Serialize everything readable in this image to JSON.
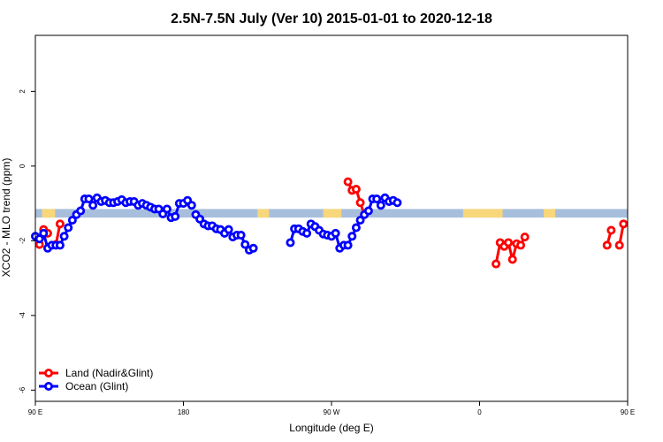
{
  "chart_data": {
    "type": "line",
    "title": "2.5N-7.5N July (Ver 10)   2015-01-01 to 2020-12-18",
    "xlabel": "Longitude (deg E)",
    "ylabel": "XCO2 - MLO trend (ppm)",
    "xlim": [
      90,
      450
    ],
    "ylim": [
      -6.3,
      3.5
    ],
    "x_ticks": [
      {
        "value": 90,
        "label": "90 E"
      },
      {
        "value": 180,
        "label": "180"
      },
      {
        "value": 270,
        "label": "90 W"
      },
      {
        "value": 360,
        "label": "0"
      },
      {
        "value": 450,
        "label": "90 E"
      },
      {
        "value": 540,
        "label": "180"
      }
    ],
    "y_ticks": [
      {
        "value": -6,
        "label": "-6"
      },
      {
        "value": -4,
        "label": "-4"
      },
      {
        "value": -2,
        "label": "-2"
      },
      {
        "value": 0,
        "label": "0"
      },
      {
        "value": 2,
        "label": "2"
      }
    ],
    "legend_position": "bottom-left",
    "background_band": {
      "y_min": -1.38,
      "y_max": -1.15,
      "ocean_color": "#a7bfdc",
      "land_color": "#f8d67a"
    },
    "land_segments": [
      [
        10,
        14
      ],
      [
        94,
        102
      ],
      [
        225,
        232
      ],
      [
        265,
        276
      ],
      [
        350,
        374
      ],
      [
        399,
        406
      ]
    ],
    "series": [
      {
        "name": "Land (Nadir&Glint)",
        "color": "#ff0000",
        "segments": [
          [
            [
              92.5,
              -2.1
            ],
            [
              95,
              -1.7
            ],
            [
              97.5,
              -1.8
            ]
          ],
          [
            [
              102.5,
              -2.1
            ],
            [
              105,
              -1.55
            ]
          ],
          [
            [
              280,
              -0.42
            ],
            [
              282.5,
              -0.65
            ],
            [
              285,
              -0.62
            ],
            [
              287.5,
              -0.98
            ],
            [
              290,
              -1.3
            ]
          ],
          [
            [
              370,
              -2.62
            ],
            [
              372.5,
              -2.05
            ],
            [
              375,
              -2.15
            ],
            [
              377.5,
              -2.05
            ],
            [
              380,
              -2.5
            ],
            [
              382.5,
              -2.08
            ],
            [
              385,
              -2.12
            ],
            [
              387.5,
              -1.9
            ]
          ],
          [
            [
              437.5,
              -2.12
            ],
            [
              440,
              -1.72
            ]
          ],
          [
            [
              445,
              -2.12
            ],
            [
              447.5,
              -1.55
            ]
          ]
        ]
      },
      {
        "name": "Ocean (Glint)",
        "color": "#0000ff",
        "segments": [
          [
            [
              90,
              -1.88
            ],
            [
              92.5,
              -1.95
            ],
            [
              95,
              -1.8
            ],
            [
              97.5,
              -2.2
            ],
            [
              100,
              -2.12
            ],
            [
              102.5,
              -2.12
            ],
            [
              105,
              -2.12
            ],
            [
              107.5,
              -1.88
            ],
            [
              110,
              -1.65
            ],
            [
              112.5,
              -1.45
            ],
            [
              115,
              -1.3
            ],
            [
              117.5,
              -1.2
            ],
            [
              120,
              -0.88
            ],
            [
              122.5,
              -0.88
            ],
            [
              125,
              -1.05
            ],
            [
              127.5,
              -0.85
            ],
            [
              130,
              -0.95
            ],
            [
              132.5,
              -0.92
            ],
            [
              135,
              -0.98
            ],
            [
              137.5,
              -0.98
            ],
            [
              140,
              -0.95
            ],
            [
              142.5,
              -0.9
            ],
            [
              145,
              -0.98
            ],
            [
              147.5,
              -0.95
            ],
            [
              150,
              -0.95
            ],
            [
              152.5,
              -1.05
            ],
            [
              155,
              -1.0
            ],
            [
              157.5,
              -1.05
            ],
            [
              160,
              -1.1
            ],
            [
              162.5,
              -1.15
            ],
            [
              165,
              -1.15
            ],
            [
              167.5,
              -1.28
            ],
            [
              170,
              -1.15
            ],
            [
              172.5,
              -1.38
            ],
            [
              175,
              -1.35
            ],
            [
              177.5,
              -1.0
            ],
            [
              180,
              -1.0
            ],
            [
              182.5,
              -0.92
            ],
            [
              185,
              -1.05
            ]
          ],
          [
            [
              187.5,
              -1.3
            ],
            [
              190,
              -1.42
            ],
            [
              192.5,
              -1.55
            ],
            [
              195,
              -1.6
            ],
            [
              197.5,
              -1.6
            ],
            [
              200,
              -1.68
            ],
            [
              202.5,
              -1.7
            ],
            [
              205,
              -1.8
            ],
            [
              207.5,
              -1.7
            ],
            [
              210,
              -1.9
            ],
            [
              212.5,
              -1.85
            ],
            [
              215,
              -1.85
            ],
            [
              217.5,
              -2.1
            ],
            [
              220,
              -2.25
            ],
            [
              222.5,
              -2.2
            ]
          ],
          [
            [
              245,
              -2.05
            ],
            [
              247.5,
              -1.68
            ],
            [
              250,
              -1.68
            ],
            [
              252.5,
              -1.75
            ],
            [
              255,
              -1.8
            ],
            [
              257.5,
              -1.55
            ],
            [
              260,
              -1.62
            ],
            [
              262.5,
              -1.72
            ],
            [
              265,
              -1.82
            ],
            [
              267.5,
              -1.85
            ],
            [
              270,
              -1.88
            ],
            [
              272.5,
              -1.8
            ],
            [
              275,
              -2.2
            ],
            [
              277.5,
              -2.12
            ],
            [
              280,
              -2.12
            ],
            [
              282.5,
              -1.88
            ],
            [
              285,
              -1.65
            ],
            [
              287.5,
              -1.45
            ],
            [
              290,
              -1.3
            ],
            [
              292.5,
              -1.2
            ],
            [
              295,
              -0.88
            ],
            [
              297.5,
              -0.88
            ],
            [
              300,
              -1.05
            ],
            [
              302.5,
              -0.85
            ],
            [
              305,
              -0.95
            ],
            [
              307.5,
              -0.92
            ],
            [
              310,
              -0.98
            ]
          ]
        ]
      }
    ]
  }
}
